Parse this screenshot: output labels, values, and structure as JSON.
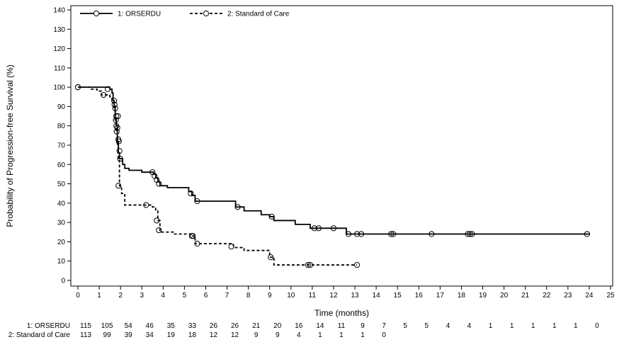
{
  "chart_data": {
    "type": "line",
    "subtype": "kaplan-meier",
    "title": "",
    "xlabel": "Time (months)",
    "ylabel": "Probability of Progression-free Survival (%)",
    "xlim": [
      0,
      25
    ],
    "ylim": [
      0,
      140
    ],
    "x_ticks": [
      0,
      1,
      2,
      3,
      4,
      5,
      6,
      7,
      8,
      9,
      10,
      11,
      12,
      13,
      14,
      15,
      16,
      17,
      18,
      19,
      20,
      21,
      22,
      23,
      24,
      25
    ],
    "y_ticks": [
      0,
      10,
      20,
      30,
      40,
      50,
      60,
      70,
      80,
      90,
      100,
      110,
      120,
      130,
      140
    ],
    "grid": false,
    "legend_position": "top-left",
    "series": [
      {
        "name": "1: ORSERDU",
        "line_style": "solid",
        "color": "#000000",
        "steps": [
          [
            0,
            100
          ],
          [
            1.4,
            100
          ],
          [
            1.5,
            99
          ],
          [
            1.6,
            97
          ],
          [
            1.65,
            93
          ],
          [
            1.7,
            90
          ],
          [
            1.75,
            83
          ],
          [
            1.8,
            80
          ],
          [
            1.85,
            72
          ],
          [
            1.9,
            66
          ],
          [
            1.95,
            63
          ],
          [
            2.1,
            60
          ],
          [
            2.2,
            58
          ],
          [
            2.4,
            57
          ],
          [
            3.0,
            56
          ],
          [
            3.55,
            55
          ],
          [
            3.65,
            53
          ],
          [
            3.75,
            51
          ],
          [
            3.85,
            49
          ],
          [
            4.2,
            48
          ],
          [
            5.2,
            46
          ],
          [
            5.35,
            44
          ],
          [
            5.5,
            41
          ],
          [
            7.4,
            38
          ],
          [
            7.8,
            36
          ],
          [
            8.6,
            34
          ],
          [
            9.0,
            33
          ],
          [
            9.2,
            31
          ],
          [
            10.2,
            29
          ],
          [
            10.9,
            27
          ],
          [
            12.1,
            27
          ],
          [
            12.6,
            24
          ],
          [
            24.0,
            24
          ]
        ],
        "censored": [
          [
            0,
            100
          ],
          [
            1.4,
            99
          ],
          [
            1.7,
            93
          ],
          [
            1.72,
            91
          ],
          [
            1.75,
            89
          ],
          [
            1.78,
            83
          ],
          [
            1.8,
            80
          ],
          [
            1.82,
            77
          ],
          [
            1.85,
            79
          ],
          [
            1.88,
            85
          ],
          [
            1.9,
            73
          ],
          [
            1.92,
            72
          ],
          [
            1.95,
            67
          ],
          [
            1.98,
            63
          ],
          [
            3.5,
            56
          ],
          [
            3.6,
            54
          ],
          [
            3.7,
            52
          ],
          [
            3.8,
            50
          ],
          [
            5.3,
            45
          ],
          [
            5.6,
            41
          ],
          [
            7.5,
            38
          ],
          [
            9.1,
            33
          ],
          [
            11.1,
            27
          ],
          [
            11.3,
            27
          ],
          [
            12.0,
            27
          ],
          [
            12.7,
            24
          ],
          [
            13.1,
            24
          ],
          [
            13.3,
            24
          ],
          [
            14.7,
            24
          ],
          [
            14.8,
            24
          ],
          [
            16.6,
            24
          ],
          [
            18.3,
            24
          ],
          [
            18.4,
            24
          ],
          [
            18.5,
            24
          ],
          [
            23.9,
            24
          ]
        ]
      },
      {
        "name": "2: Standard of Care",
        "line_style": "dashed",
        "color": "#000000",
        "steps": [
          [
            0,
            100
          ],
          [
            0.6,
            99
          ],
          [
            0.9,
            98
          ],
          [
            1.1,
            96
          ],
          [
            1.5,
            95
          ],
          [
            1.6,
            92
          ],
          [
            1.7,
            88
          ],
          [
            1.75,
            84
          ],
          [
            1.8,
            77
          ],
          [
            1.85,
            70
          ],
          [
            1.9,
            62
          ],
          [
            1.95,
            49
          ],
          [
            2.05,
            45
          ],
          [
            2.2,
            39
          ],
          [
            3.5,
            38
          ],
          [
            3.65,
            36
          ],
          [
            3.75,
            31
          ],
          [
            3.85,
            25
          ],
          [
            4.5,
            24
          ],
          [
            5.3,
            23
          ],
          [
            5.5,
            19
          ],
          [
            7.3,
            17
          ],
          [
            7.8,
            15.5
          ],
          [
            9.0,
            12
          ],
          [
            9.2,
            8
          ],
          [
            13.1,
            8
          ]
        ],
        "censored": [
          [
            0,
            100
          ],
          [
            1.2,
            96
          ],
          [
            1.8,
            85
          ],
          [
            1.9,
            49
          ],
          [
            3.2,
            39
          ],
          [
            3.7,
            31
          ],
          [
            3.8,
            26
          ],
          [
            5.35,
            23
          ],
          [
            5.4,
            23
          ],
          [
            5.6,
            19
          ],
          [
            7.2,
            17.5
          ],
          [
            9.05,
            12
          ],
          [
            10.8,
            8
          ],
          [
            10.9,
            8
          ],
          [
            13.1,
            8
          ]
        ]
      }
    ],
    "risk_table": {
      "time_points": [
        0,
        1,
        2,
        3,
        4,
        5,
        6,
        7,
        8,
        9,
        10,
        11,
        12,
        13,
        14,
        15,
        16,
        17,
        18,
        19,
        20,
        21,
        22,
        23,
        24
      ],
      "rows": [
        {
          "label": "1: ORSERDU",
          "counts": [
            "115",
            "105",
            "54",
            "46",
            "35",
            "33",
            "26",
            "26",
            "21",
            "20",
            "16",
            "14",
            "11",
            "9",
            "7",
            "5",
            "5",
            "4",
            "4",
            "1",
            "1",
            "1",
            "1",
            "1",
            "0"
          ]
        },
        {
          "label": "2: Standard of Care",
          "counts": [
            "113",
            "99",
            "39",
            "34",
            "19",
            "18",
            "12",
            "12",
            "9",
            "9",
            "4",
            "1",
            "1",
            "1",
            "0"
          ]
        }
      ]
    }
  }
}
